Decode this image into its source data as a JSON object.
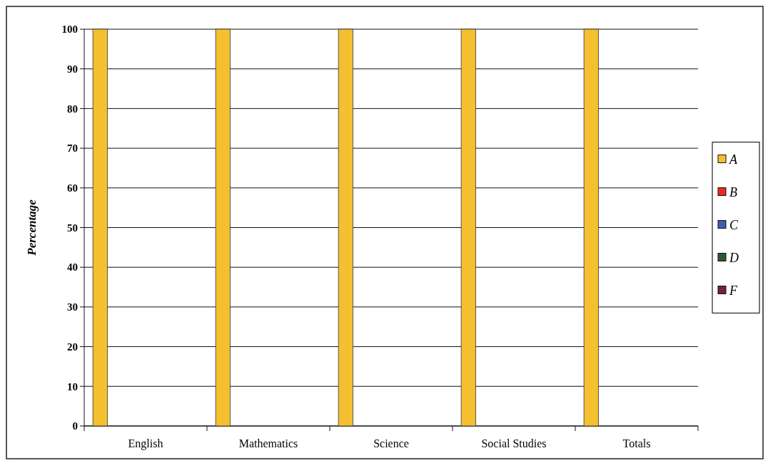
{
  "chart_data": {
    "type": "bar",
    "ylabel": "Percentage",
    "categories": [
      "English",
      "Mathematics",
      "Science",
      "Social Studies",
      "Totals"
    ],
    "series": [
      {
        "name": "A",
        "color": "#f5c030",
        "values": [
          100,
          100,
          100,
          100,
          100
        ]
      },
      {
        "name": "B",
        "color": "#e82a20",
        "values": [
          0,
          0,
          0,
          0,
          0
        ]
      },
      {
        "name": "C",
        "color": "#3a5fb0",
        "values": [
          0,
          0,
          0,
          0,
          0
        ]
      },
      {
        "name": "D",
        "color": "#2a5a30",
        "values": [
          0,
          0,
          0,
          0,
          0
        ]
      },
      {
        "name": "F",
        "color": "#7a2038",
        "values": [
          0,
          0,
          0,
          0,
          0
        ]
      }
    ],
    "ylim": [
      0,
      100
    ],
    "yticks": [
      0,
      10,
      20,
      30,
      40,
      50,
      60,
      70,
      80,
      90,
      100
    ],
    "grid": "y",
    "legend": "right"
  }
}
